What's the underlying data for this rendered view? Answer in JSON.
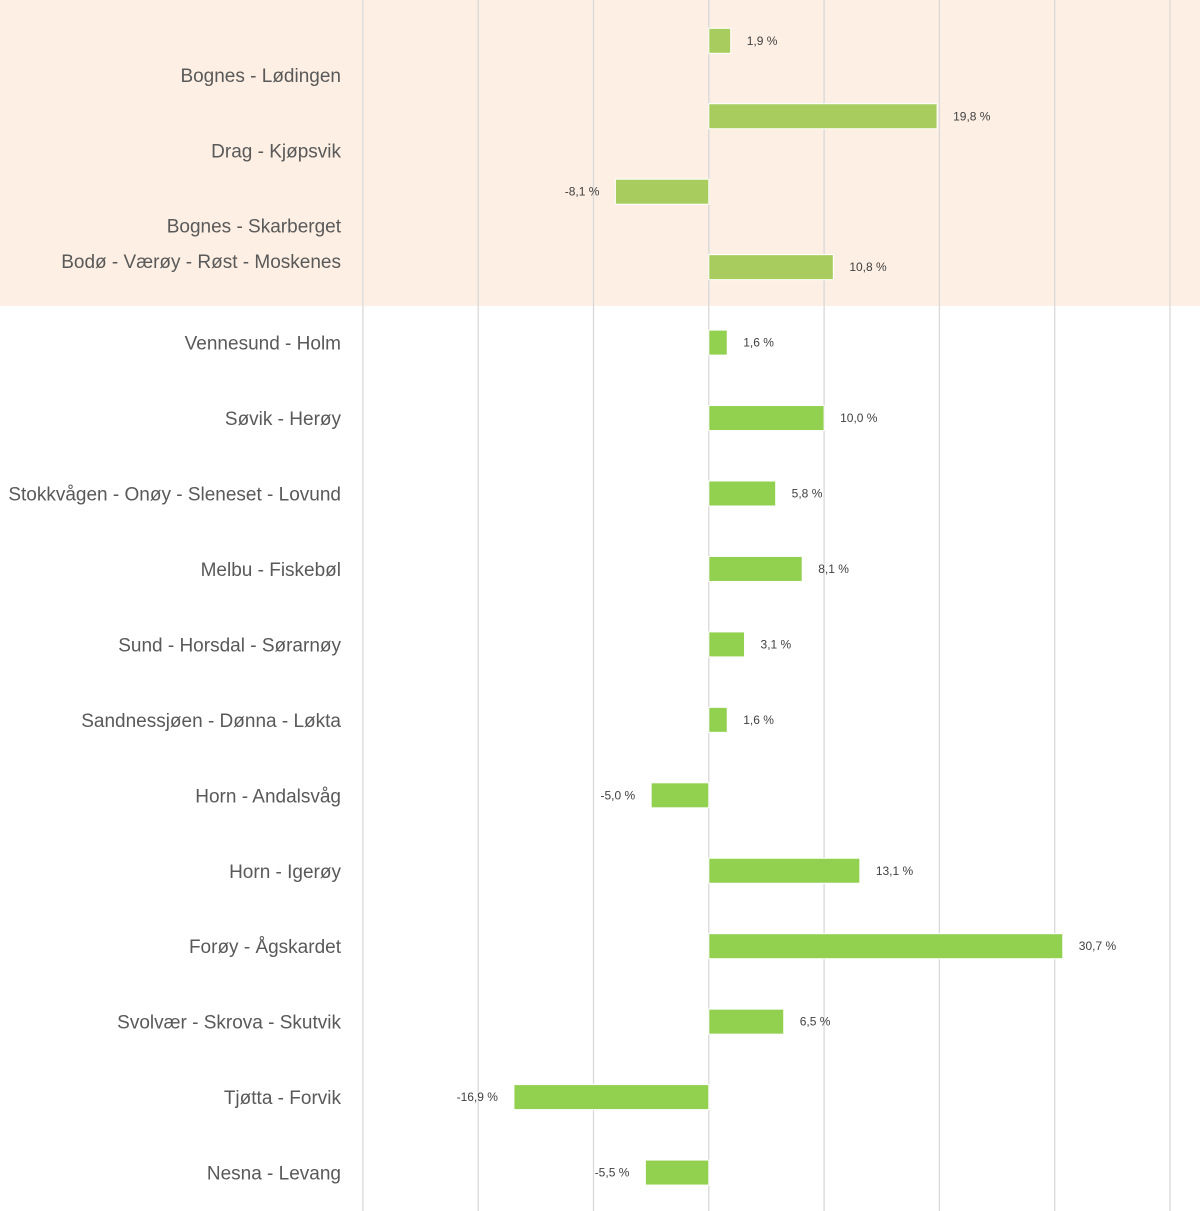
{
  "chart_data": {
    "type": "bar",
    "orientation": "horizontal",
    "categories": [
      "Bognes - Lødingen",
      "Drag - Kjøpsvik",
      "Bognes - Skarberget",
      "Bodø - Værøy - Røst - Moskenes",
      "Vennesund - Holm",
      "Søvik - Herøy",
      "Stokkvågen - Onøy - Sleneset - Lovund",
      "Melbu - Fiskebøl",
      "Sund - Horsdal - Sørarnøy",
      "Sandnessjøen - Dønna - Løkta",
      "Horn - Andalsvåg",
      "Horn - Igerøy",
      "Forøy - Ågskardet",
      "Svolvær - Skrova - Skutvik",
      "Tjøtta - Forvik",
      "Nesna - Levang"
    ],
    "values": [
      1.9,
      19.8,
      -8.1,
      10.8,
      1.6,
      10.0,
      5.8,
      8.1,
      3.1,
      1.6,
      -5.0,
      13.1,
      30.7,
      6.5,
      -16.9,
      -5.5
    ],
    "value_labels": [
      "1,9 %",
      "19,8 %",
      "-8,1 %",
      "10,8 %",
      "1,6 %",
      "10,0 %",
      "5,8 %",
      "8,1 %",
      "3,1 %",
      "1,6 %",
      "-5,0 %",
      "13,1 %",
      "30,7 %",
      "6,5 %",
      "-16,9 %",
      "-5,5 %"
    ],
    "highlighted_categories": 4,
    "xlim": [
      -30,
      40
    ],
    "grid": "vertical",
    "colors": {
      "bar": "#92d050",
      "bar_highlighted": "#a9cc5e",
      "highlight_band": "#fdefe4",
      "gridline": "#d9d9d9"
    }
  }
}
